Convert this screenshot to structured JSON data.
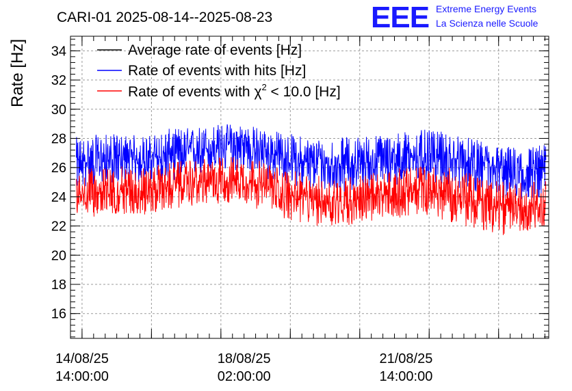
{
  "chart_data": {
    "type": "line",
    "title": "CARI-01 2025-08-14--2025-08-23",
    "xlabel": "",
    "ylabel": "Rate [Hz]",
    "ylim": [
      14.3,
      35
    ],
    "yticks": [
      16,
      18,
      20,
      22,
      24,
      26,
      28,
      30,
      32,
      34
    ],
    "xlim": [
      "2025-08-14 08:00",
      "2025-08-24 16:00"
    ],
    "xticks": [
      {
        "t": "2025-08-14 14:00",
        "line1": "14/08/25",
        "line2": "14:00:00"
      },
      {
        "t": "2025-08-18 02:00",
        "line1": "18/08/25",
        "line2": "02:00:00"
      },
      {
        "t": "2025-08-21 14:00",
        "line1": "21/08/25",
        "line2": "14:00:00"
      }
    ],
    "grid": true,
    "legend_position": "top-left",
    "legend": [
      {
        "label": "Average rate of events [Hz]",
        "color": "#000000"
      },
      {
        "label": "Rate of events with hits [Hz]",
        "color": "#0000ff"
      },
      {
        "label_prefix": "Rate of events with ",
        "label_symbol": "χ",
        "label_sup": "2",
        "label_suffix": " < 10.0 [Hz]",
        "color": "#ff0000"
      }
    ],
    "series": [
      {
        "name": "Rate of events with hits [Hz]",
        "color": "#0000ff",
        "x": [
          "2025-08-14 12:00",
          "2025-08-15 00:00",
          "2025-08-15 12:00",
          "2025-08-16 00:00",
          "2025-08-16 12:00",
          "2025-08-17 00:00",
          "2025-08-17 12:00",
          "2025-08-18 00:00",
          "2025-08-18 12:00",
          "2025-08-19 00:00",
          "2025-08-19 12:00",
          "2025-08-20 00:00",
          "2025-08-20 12:00",
          "2025-08-21 00:00",
          "2025-08-21 12:00",
          "2025-08-22 00:00",
          "2025-08-22 12:00",
          "2025-08-23 00:00",
          "2025-08-23 12:00",
          "2025-08-24 00:00",
          "2025-08-24 12:00"
        ],
        "mean": [
          26.3,
          26.5,
          26.6,
          26.5,
          26.9,
          27.1,
          27.4,
          27.6,
          27.1,
          26.6,
          26.3,
          26.2,
          26.3,
          26.4,
          26.7,
          26.8,
          26.6,
          26.3,
          25.9,
          25.7,
          25.8
        ],
        "min": [
          24.5,
          24.8,
          24.9,
          24.8,
          25.1,
          25.3,
          25.6,
          25.8,
          25.2,
          24.8,
          24.4,
          24.3,
          24.4,
          24.6,
          24.9,
          25.0,
          24.7,
          24.4,
          24.0,
          23.7,
          23.9
        ],
        "max": [
          28.1,
          28.3,
          28.3,
          28.2,
          28.7,
          28.8,
          29.0,
          29.1,
          28.7,
          28.4,
          28.1,
          28.0,
          28.2,
          28.3,
          28.5,
          28.6,
          28.4,
          28.0,
          27.6,
          27.4,
          27.6
        ]
      },
      {
        "name": "Rate of events with χ2 < 10.0 [Hz]",
        "color": "#ff0000",
        "x": [
          "2025-08-14 12:00",
          "2025-08-15 00:00",
          "2025-08-15 12:00",
          "2025-08-16 00:00",
          "2025-08-16 12:00",
          "2025-08-17 00:00",
          "2025-08-17 12:00",
          "2025-08-18 00:00",
          "2025-08-18 12:00",
          "2025-08-19 00:00",
          "2025-08-19 12:00",
          "2025-08-20 00:00",
          "2025-08-20 12:00",
          "2025-08-21 00:00",
          "2025-08-21 12:00",
          "2025-08-22 00:00",
          "2025-08-22 12:00",
          "2025-08-23 00:00",
          "2025-08-23 12:00",
          "2025-08-24 00:00",
          "2025-08-24 12:00"
        ],
        "mean": [
          24.2,
          24.3,
          24.5,
          24.4,
          24.7,
          24.9,
          25.1,
          25.3,
          24.7,
          24.2,
          23.8,
          23.7,
          23.8,
          24.0,
          24.3,
          24.4,
          24.2,
          23.8,
          23.4,
          23.3,
          23.5
        ],
        "min": [
          22.7,
          22.6,
          22.8,
          22.7,
          23.1,
          23.4,
          23.5,
          23.6,
          23.0,
          22.4,
          22.0,
          21.9,
          22.1,
          22.3,
          22.6,
          22.8,
          22.3,
          21.8,
          21.3,
          21.5,
          21.9
        ],
        "max": [
          25.9,
          26.0,
          26.1,
          26.0,
          26.4,
          26.5,
          26.7,
          26.9,
          26.4,
          25.9,
          25.5,
          25.4,
          25.5,
          25.7,
          26.0,
          26.2,
          26.0,
          25.6,
          25.1,
          25.0,
          25.1
        ]
      }
    ]
  },
  "logo": {
    "text": "EEE",
    "line1": "Extreme Energy Events",
    "line2": "La Scienza nelle Scuole",
    "color": "#1a1aff"
  }
}
